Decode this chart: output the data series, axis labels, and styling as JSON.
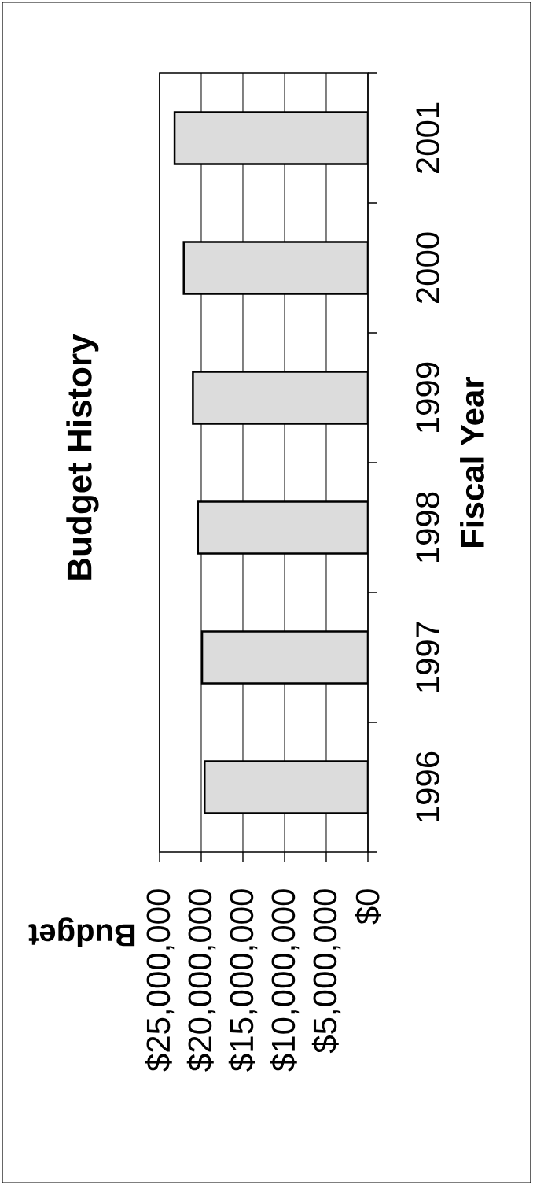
{
  "chart_data": {
    "type": "bar",
    "orientation": "horizontal",
    "title": "Budget History",
    "xlabel": "Budget",
    "ylabel": "Fiscal Year",
    "categories": [
      "2001",
      "2000",
      "1999",
      "1998",
      "1997",
      "1996"
    ],
    "values": [
      23200000,
      22100000,
      21000000,
      20400000,
      19900000,
      19600000
    ],
    "color": "#dcdcdc",
    "xlim": [
      25000000,
      0
    ],
    "xticks": [
      {
        "value": 25000000,
        "label": "$25,000,000"
      },
      {
        "value": 20000000,
        "label": "$20,000,000"
      },
      {
        "value": 15000000,
        "label": "$15,000,000"
      },
      {
        "value": 10000000,
        "label": "$10,000,000"
      },
      {
        "value": 5000000,
        "label": "$5,000,000"
      },
      {
        "value": 0,
        "label": "$0"
      }
    ],
    "grid": "x"
  }
}
